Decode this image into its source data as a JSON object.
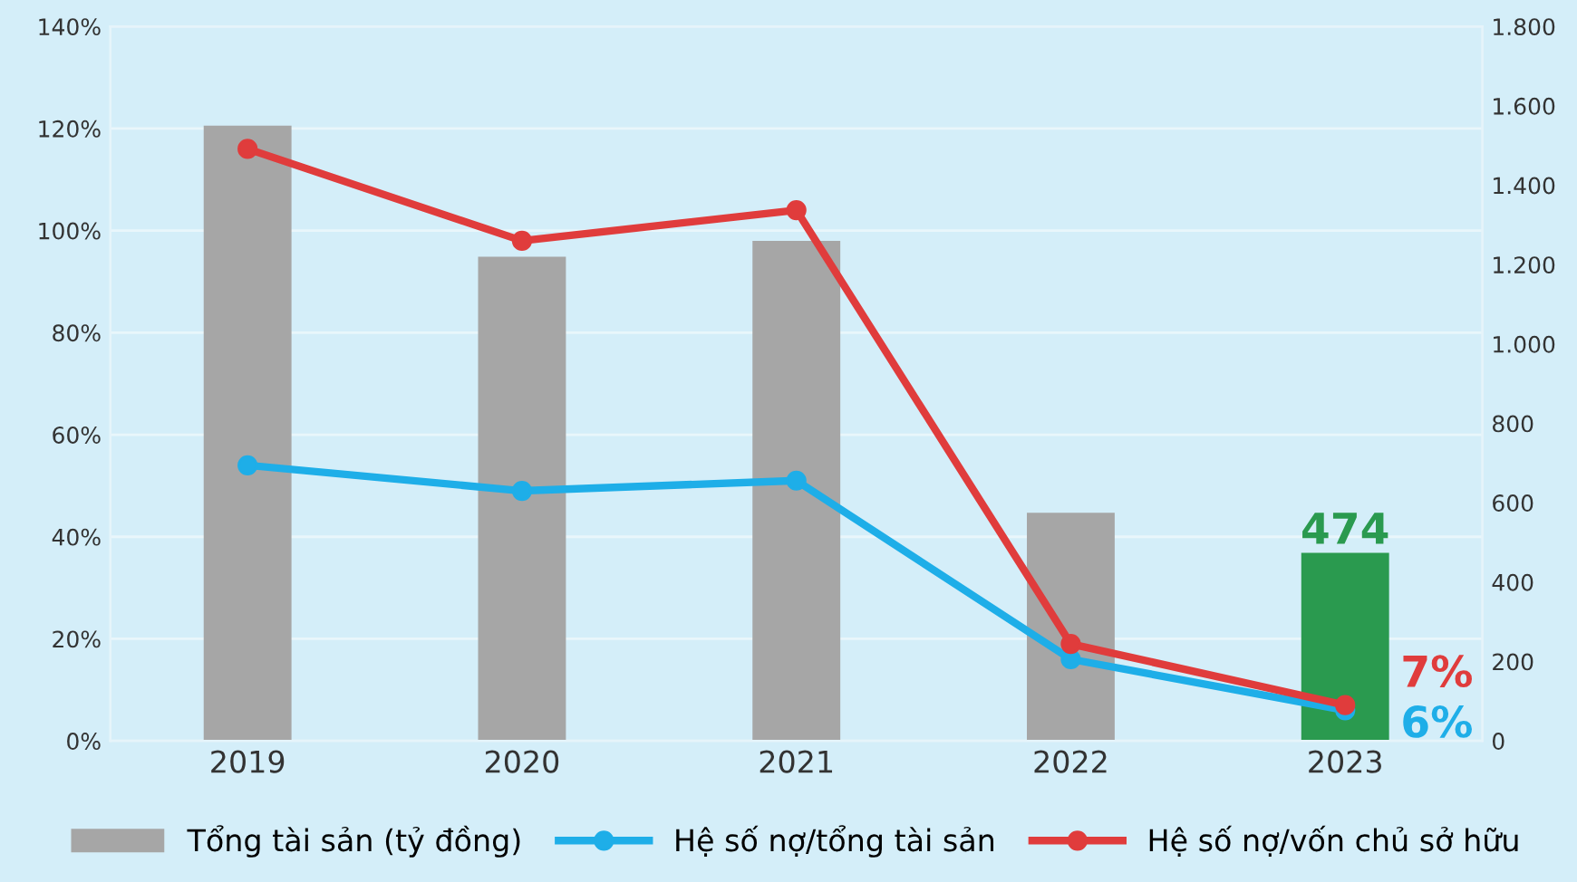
{
  "chart_data": {
    "type": "bar",
    "categories": [
      "2019",
      "2020",
      "2021",
      "2022",
      "2023"
    ],
    "ylim": [
      0,
      140
    ],
    "yticks": [
      {
        "value": 0,
        "label": "0%"
      },
      {
        "value": 20,
        "label": "20%"
      },
      {
        "value": 40,
        "label": "40%"
      },
      {
        "value": 60,
        "label": "60%"
      },
      {
        "value": 80,
        "label": "80%"
      },
      {
        "value": 100,
        "label": "100%"
      },
      {
        "value": 120,
        "label": "120%"
      },
      {
        "value": 140,
        "label": "140%"
      }
    ],
    "y2lim": [
      0,
      1800
    ],
    "y2ticks": [
      0,
      200,
      400,
      600,
      800,
      {
        "value": 1000,
        "label": "1.000"
      },
      {
        "value": 1200,
        "label": "1.200"
      },
      {
        "value": 1400,
        "label": "1.400"
      },
      {
        "value": 1600,
        "label": "1.600"
      },
      {
        "value": 1800,
        "label": "1.800"
      }
    ],
    "grid": "y",
    "legend": "bottom",
    "marker": "circle",
    "line_style": "solid",
    "series": [
      {
        "name": "Tổng tài sản (tỷ đồng)",
        "axis": "y2",
        "color": "#a6a6a6",
        "colors": [
          "#a6a6a6",
          "#a6a6a6",
          "#a6a6a6",
          "#a6a6a6",
          "#2a9a4f"
        ],
        "values": [
          1550,
          1220,
          1260,
          575,
          474
        ],
        "value_labels": [
          null,
          null,
          null,
          null,
          "474"
        ]
      },
      {
        "name": "Hệ số nợ/tổng tài sản",
        "type": "line",
        "color": "#1eaee8",
        "values": [
          54,
          49,
          51,
          16,
          6
        ],
        "value_labels": [
          null,
          null,
          null,
          null,
          "6%"
        ]
      },
      {
        "name": "Hệ số nợ/vốn chủ sở hữu",
        "type": "line",
        "color": "#e03c3c",
        "values": [
          116,
          98,
          104,
          19,
          7
        ],
        "value_labels": [
          null,
          null,
          null,
          null,
          "7%"
        ]
      }
    ]
  }
}
